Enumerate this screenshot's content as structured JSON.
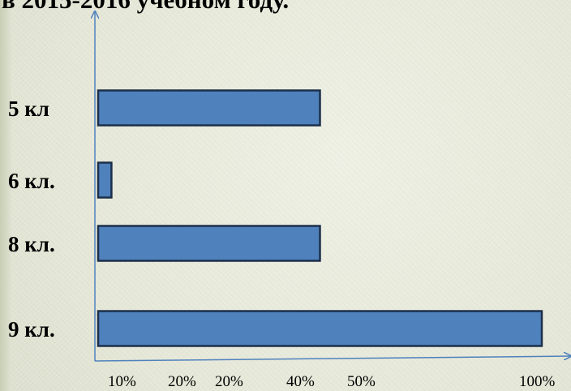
{
  "slide": {
    "title": "в 2015-2016 учебном году."
  },
  "colors": {
    "bar_fill": "#4f81bd",
    "bar_stroke": "#1c2f4a",
    "axis": "#4f81bd"
  },
  "chart_data": {
    "type": "bar",
    "orientation": "horizontal",
    "categories": [
      "5 кл",
      "6 кл.",
      "8 кл.",
      "9 кл."
    ],
    "values": [
      50,
      3,
      50,
      100
    ],
    "x_tick_labels": [
      "10%",
      "20%",
      "20%",
      "40%",
      "50%",
      "100%"
    ],
    "xlim": [
      0,
      100
    ],
    "grid": false,
    "legend": "none"
  }
}
